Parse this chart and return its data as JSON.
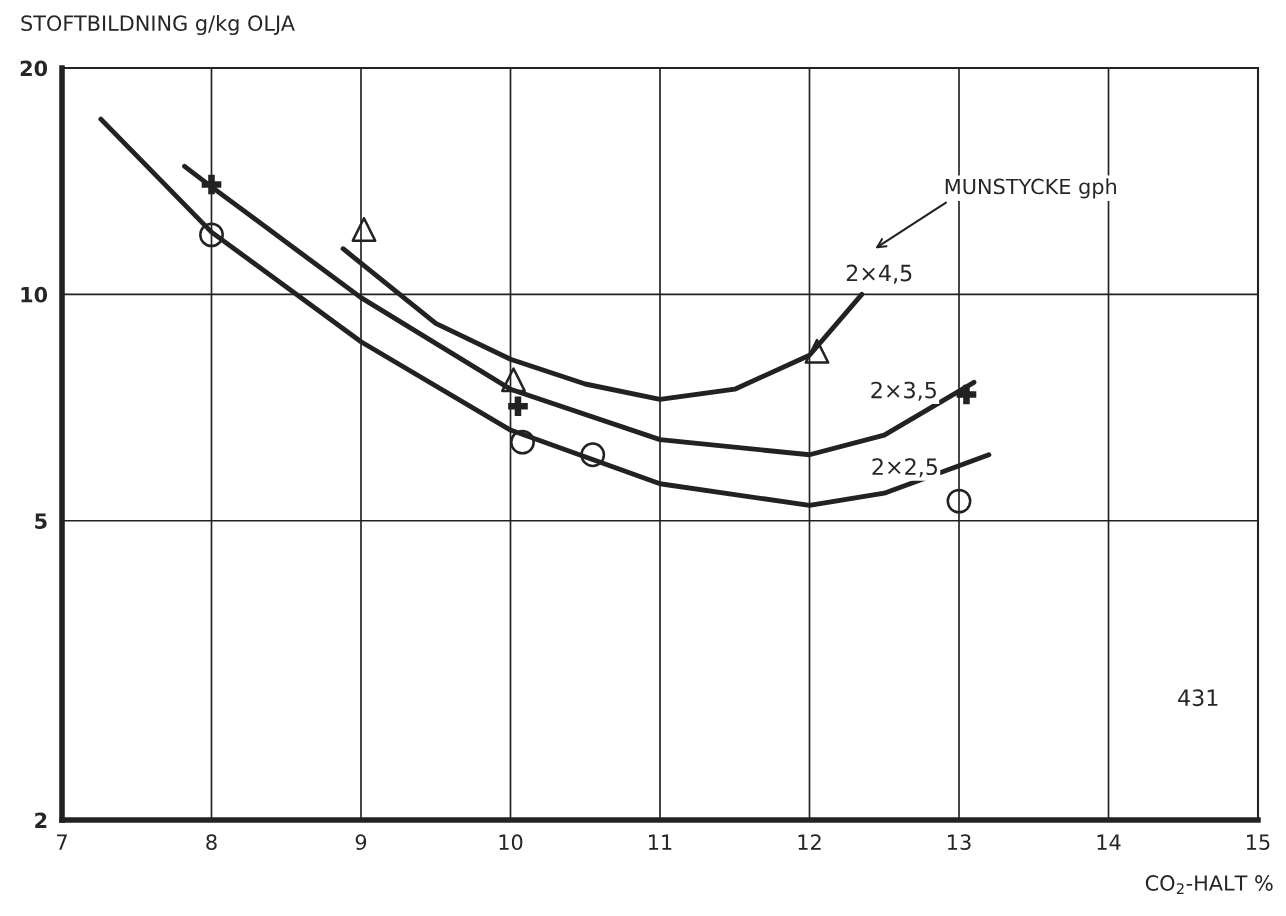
{
  "chart_data": {
    "type": "line",
    "ylabel": "STOFTBILDNING g/kg OLJA",
    "xlabel": "CO$_{2}$-HALT %",
    "log": "y",
    "xlim": [
      7,
      15
    ],
    "ylim": [
      2,
      20
    ],
    "xticks": [
      7,
      8,
      9,
      10,
      11,
      12,
      13,
      14,
      15
    ],
    "yticks": [
      2,
      5,
      10,
      20
    ],
    "grid": true,
    "series": [
      {
        "name": "2×2,5",
        "color": "#222222",
        "marker": "none",
        "x": [
          7.26,
          8,
          9,
          10,
          11,
          12,
          12.5,
          13.2
        ],
        "values": [
          17.1,
          12.1,
          8.65,
          6.6,
          5.6,
          5.24,
          5.44,
          6.12
        ]
      },
      {
        "name": "2×3,5",
        "color": "#222222",
        "marker": "none",
        "x": [
          7.82,
          8,
          9,
          10,
          11,
          12,
          12.5,
          13.1
        ],
        "values": [
          14.8,
          13.9,
          9.9,
          7.48,
          6.41,
          6.12,
          6.5,
          7.64
        ]
      },
      {
        "name": "2×4,5",
        "color": "#222222",
        "marker": "none",
        "x": [
          8.88,
          9.5,
          10,
          10.5,
          11,
          11.5,
          12,
          12.35
        ],
        "values": [
          11.5,
          9.15,
          8.2,
          7.6,
          7.25,
          7.48,
          8.3,
          10.0
        ]
      },
      {
        "type": "scatter",
        "color": "#222222",
        "marker": "circle",
        "x": [
          8,
          10.08,
          10.55,
          13
        ],
        "values": [
          12.0,
          6.36,
          6.12,
          5.31
        ]
      },
      {
        "type": "scatter",
        "color": "#222222",
        "marker": "cross",
        "x": [
          8,
          10.05,
          13.05
        ],
        "values": [
          14.0,
          7.1,
          7.36
        ]
      },
      {
        "type": "scatter",
        "color": "#222222",
        "marker": "triangle",
        "x": [
          9.02,
          10.02,
          12.05
        ],
        "values": [
          12.2,
          7.7,
          8.4
        ]
      }
    ],
    "annotations": [
      "MUNSTYCKE gph",
      "431"
    ]
  }
}
